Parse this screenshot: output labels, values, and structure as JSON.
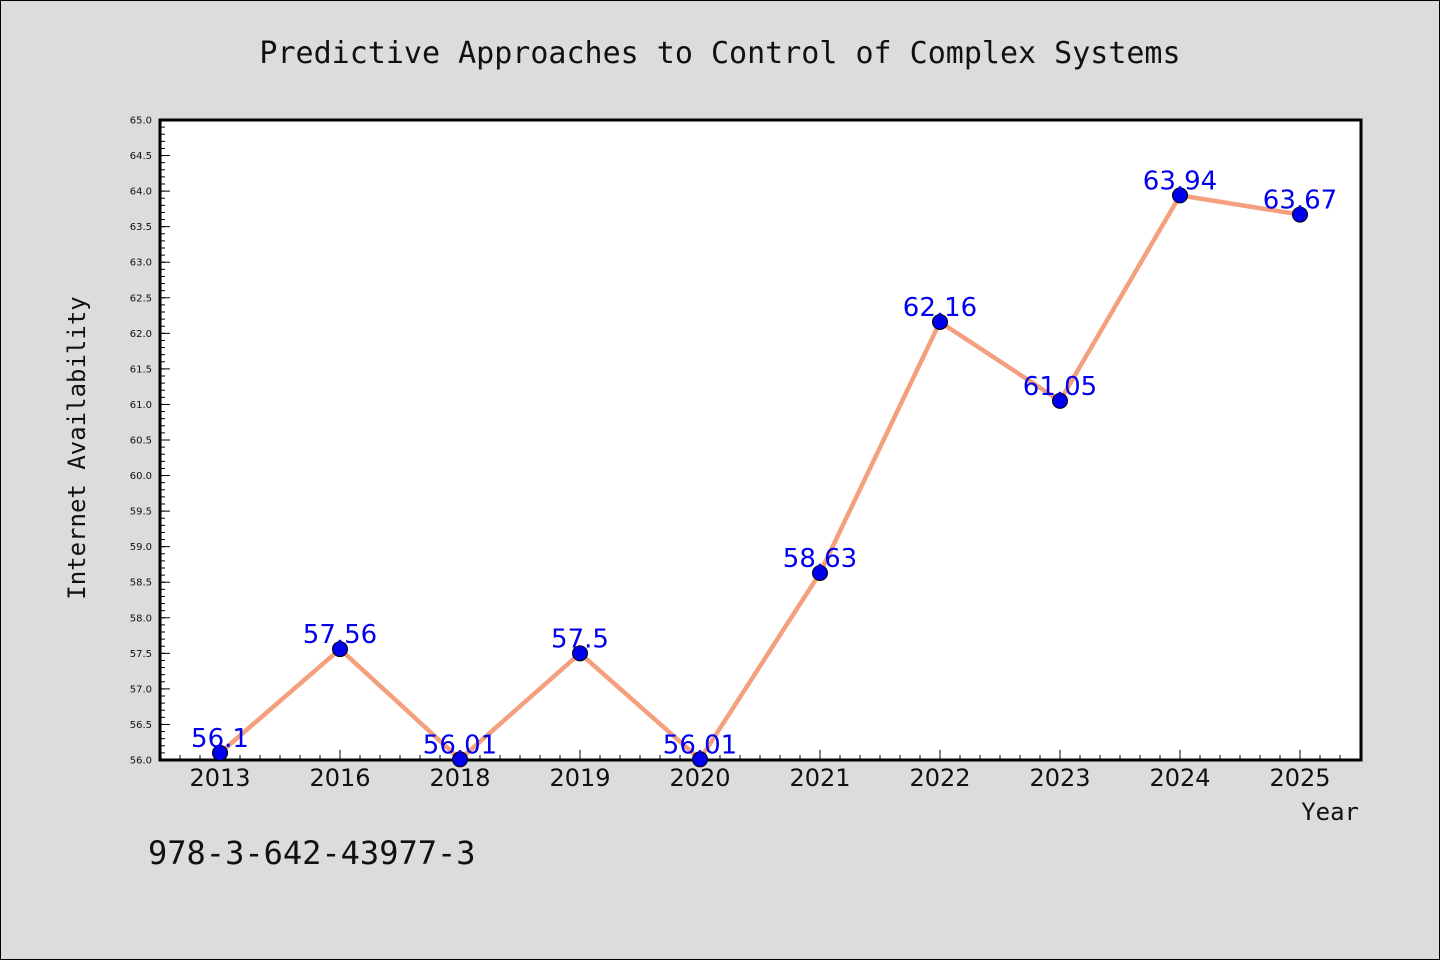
{
  "chart_data": {
    "type": "line",
    "title": "Predictive Approaches to Control of Complex Systems",
    "xlabel": "Year",
    "ylabel": "Internet Availability",
    "categories": [
      "2013",
      "2016",
      "2018",
      "2019",
      "2020",
      "2021",
      "2022",
      "2023",
      "2024",
      "2025"
    ],
    "values": [
      56.1,
      57.56,
      56.01,
      57.5,
      56.01,
      58.63,
      62.16,
      61.05,
      63.94,
      63.67
    ],
    "data_labels": [
      "56.1",
      "57.56",
      "56.01",
      "57.5",
      "56.01",
      "58.63",
      "62.16",
      "61.05",
      "63.94",
      "63.67"
    ],
    "ylim": [
      56.0,
      65.0
    ],
    "yticks": [
      "56.0",
      "56.5",
      "57.0",
      "57.5",
      "58.0",
      "58.5",
      "59.0",
      "59.5",
      "60.0",
      "60.5",
      "61.0",
      "61.5",
      "62.0",
      "62.5",
      "63.0",
      "63.5",
      "64.0",
      "64.5",
      "65.0"
    ],
    "grid": false,
    "line_color": "#f4a07e",
    "marker_color": "#0000ee",
    "label_color": "#0000ee"
  },
  "footer_text": "978-3-642-43977-3"
}
